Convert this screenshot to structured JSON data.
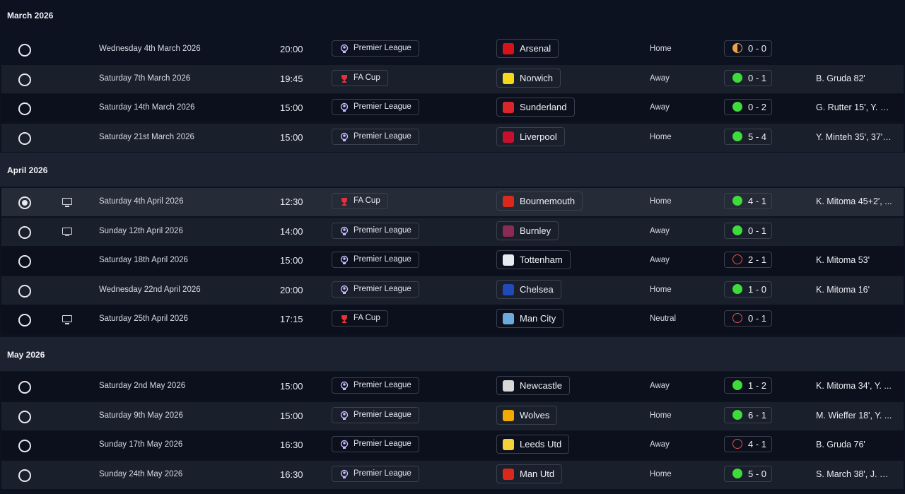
{
  "colors": {
    "background": "#0d1220",
    "win": "#3ddc3a",
    "loss": "#e4514f",
    "draw": "#f0a24a"
  },
  "months": [
    {
      "label": "March 2026",
      "fixtures": [
        {
          "date": "Wednesday 4th March 2026",
          "time": "20:00",
          "competition": "Premier League",
          "opponent": "Arsenal",
          "crest_color": "#d6121b",
          "venue": "Home",
          "outcome": "D",
          "score": "0 - 0",
          "scorers": "",
          "tv": false,
          "selected": false
        },
        {
          "date": "Saturday 7th March 2026",
          "time": "19:45",
          "competition": "FA Cup",
          "opponent": "Norwich",
          "crest_color": "#f5d81e",
          "venue": "Away",
          "outcome": "W",
          "score": "0 - 1",
          "scorers": "B. Gruda 82'",
          "tv": false,
          "selected": false
        },
        {
          "date": "Saturday 14th March 2026",
          "time": "15:00",
          "competition": "Premier League",
          "opponent": "Sunderland",
          "crest_color": "#d9262b",
          "venue": "Away",
          "outcome": "W",
          "score": "0 - 2",
          "scorers": "G. Rutter 15', Y. Mi...",
          "tv": false,
          "selected": false
        },
        {
          "date": "Saturday 21st March 2026",
          "time": "15:00",
          "competition": "Premier League",
          "opponent": "Liverpool",
          "crest_color": "#c8102e",
          "venue": "Home",
          "outcome": "W",
          "score": "5 - 4",
          "scorers": "Y. Minteh 35', 37', ...",
          "tv": false,
          "selected": false
        }
      ]
    },
    {
      "label": "April 2026",
      "fixtures": [
        {
          "date": "Saturday 4th April 2026",
          "time": "12:30",
          "competition": "FA Cup",
          "opponent": "Bournemouth",
          "crest_color": "#da291c",
          "venue": "Home",
          "outcome": "W",
          "score": "4 - 1",
          "scorers": "K. Mitoma 45+2', ...",
          "tv": true,
          "selected": true
        },
        {
          "date": "Sunday 12th April 2026",
          "time": "14:00",
          "competition": "Premier League",
          "opponent": "Burnley",
          "crest_color": "#8a2a55",
          "venue": "Away",
          "outcome": "W",
          "score": "0 - 1",
          "scorers": "",
          "tv": true,
          "selected": false
        },
        {
          "date": "Saturday 18th April 2026",
          "time": "15:00",
          "competition": "Premier League",
          "opponent": "Tottenham",
          "crest_color": "#e8ebf2",
          "venue": "Away",
          "outcome": "L",
          "score": "2 - 1",
          "scorers": "K. Mitoma 53'",
          "tv": false,
          "selected": false
        },
        {
          "date": "Wednesday 22nd April 2026",
          "time": "20:00",
          "competition": "Premier League",
          "opponent": "Chelsea",
          "crest_color": "#1f4ab8",
          "venue": "Home",
          "outcome": "W",
          "score": "1 - 0",
          "scorers": "K. Mitoma 16'",
          "tv": false,
          "selected": false
        },
        {
          "date": "Saturday 25th April 2026",
          "time": "17:15",
          "competition": "FA Cup",
          "opponent": "Man City",
          "crest_color": "#6cabdd",
          "venue": "Neutral",
          "outcome": "L",
          "score": "0 - 1",
          "scorers": "",
          "tv": true,
          "selected": false
        }
      ]
    },
    {
      "label": "May 2026",
      "fixtures": [
        {
          "date": "Saturday 2nd May 2026",
          "time": "15:00",
          "competition": "Premier League",
          "opponent": "Newcastle",
          "crest_color": "#d8d8d8",
          "venue": "Away",
          "outcome": "W",
          "score": "1 - 2",
          "scorers": "K. Mitoma 34', Y. ...",
          "tv": false,
          "selected": false
        },
        {
          "date": "Saturday 9th May 2026",
          "time": "15:00",
          "competition": "Premier League",
          "opponent": "Wolves",
          "crest_color": "#f2a900",
          "venue": "Home",
          "outcome": "W",
          "score": "6 - 1",
          "scorers": "M. Wieffer 18', Y. ...",
          "tv": false,
          "selected": false
        },
        {
          "date": "Sunday 17th May 2026",
          "time": "16:30",
          "competition": "Premier League",
          "opponent": "Leeds Utd",
          "crest_color": "#f3d23a",
          "venue": "Away",
          "outcome": "L",
          "score": "4 - 1",
          "scorers": "B. Gruda 76'",
          "tv": false,
          "selected": false
        },
        {
          "date": "Sunday 24th May 2026",
          "time": "16:30",
          "competition": "Premier League",
          "opponent": "Man Utd",
          "crest_color": "#da291c",
          "venue": "Home",
          "outcome": "W",
          "score": "5 - 0",
          "scorers": "S. March 38', J. Hi...",
          "tv": false,
          "selected": false
        }
      ]
    }
  ]
}
